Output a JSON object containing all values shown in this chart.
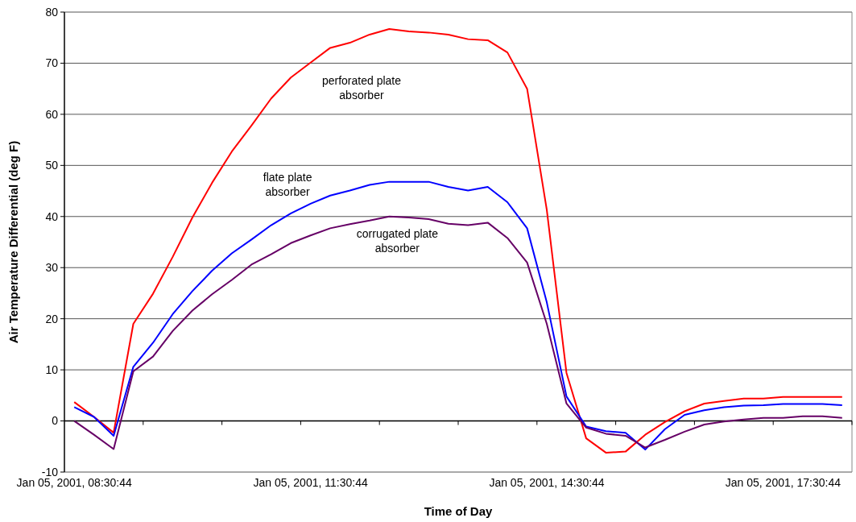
{
  "chart_data": {
    "type": "line",
    "xlabel": "Time of Day",
    "ylabel": "Air Temperature Differential (deg F)",
    "categories": [
      "Jan 05, 2001, 08:30:44",
      null,
      null,
      null,
      null,
      null,
      null,
      null,
      null,
      null,
      null,
      null,
      "Jan 05, 2001, 11:30:44",
      null,
      null,
      null,
      null,
      null,
      null,
      null,
      null,
      null,
      null,
      null,
      "Jan 05, 2001, 14:30:44",
      null,
      null,
      null,
      null,
      null,
      null,
      null,
      null,
      null,
      null,
      null,
      "Jan 05, 2001, 17:30:44",
      null,
      null,
      null
    ],
    "series": [
      {
        "name": "perforated plate absorber",
        "color": "#ff0000",
        "values": [
          3.7,
          0.8,
          -2.3,
          19.0,
          24.9,
          32.1,
          39.8,
          46.6,
          52.7,
          57.8,
          63.1,
          67.2,
          70.1,
          73.0,
          74.0,
          75.6,
          76.7,
          76.2,
          76.0,
          75.6,
          74.7,
          74.5,
          72.1,
          65.0,
          41.3,
          9.4,
          -3.4,
          -6.2,
          -6.0,
          -2.7,
          -0.2,
          1.9,
          3.4,
          3.9,
          4.4,
          4.4,
          4.7,
          4.7,
          4.7,
          4.7
        ]
      },
      {
        "name": "flate plate absorber",
        "color": "#0000ff",
        "values": [
          2.7,
          0.8,
          -2.9,
          10.6,
          15.3,
          20.9,
          25.4,
          29.4,
          32.8,
          35.5,
          38.3,
          40.6,
          42.5,
          44.1,
          45.1,
          46.2,
          46.8,
          46.8,
          46.8,
          45.8,
          45.1,
          45.8,
          42.8,
          37.7,
          23.2,
          4.8,
          -1.1,
          -2.0,
          -2.3,
          -5.6,
          -1.6,
          1.2,
          2.1,
          2.7,
          3.0,
          3.1,
          3.3,
          3.3,
          3.3,
          3.1
        ]
      },
      {
        "name": "corrugated plate absorber",
        "color": "#660066",
        "values": [
          0.0,
          -2.7,
          -5.5,
          9.7,
          12.6,
          17.6,
          21.6,
          24.8,
          27.6,
          30.6,
          32.6,
          34.8,
          36.3,
          37.7,
          38.5,
          39.2,
          40.0,
          39.8,
          39.5,
          38.6,
          38.3,
          38.8,
          35.8,
          31.0,
          19.0,
          3.4,
          -1.3,
          -2.5,
          -2.9,
          -5.2,
          -3.7,
          -2.1,
          -0.7,
          -0.1,
          0.3,
          0.6,
          0.6,
          0.9,
          0.9,
          0.6
        ]
      }
    ],
    "ylim": [
      -10,
      80
    ],
    "yticks": [
      -10,
      0,
      10,
      20,
      30,
      40,
      50,
      60,
      70,
      80
    ],
    "grid": "y",
    "marker": "none",
    "line_style": "solid"
  }
}
